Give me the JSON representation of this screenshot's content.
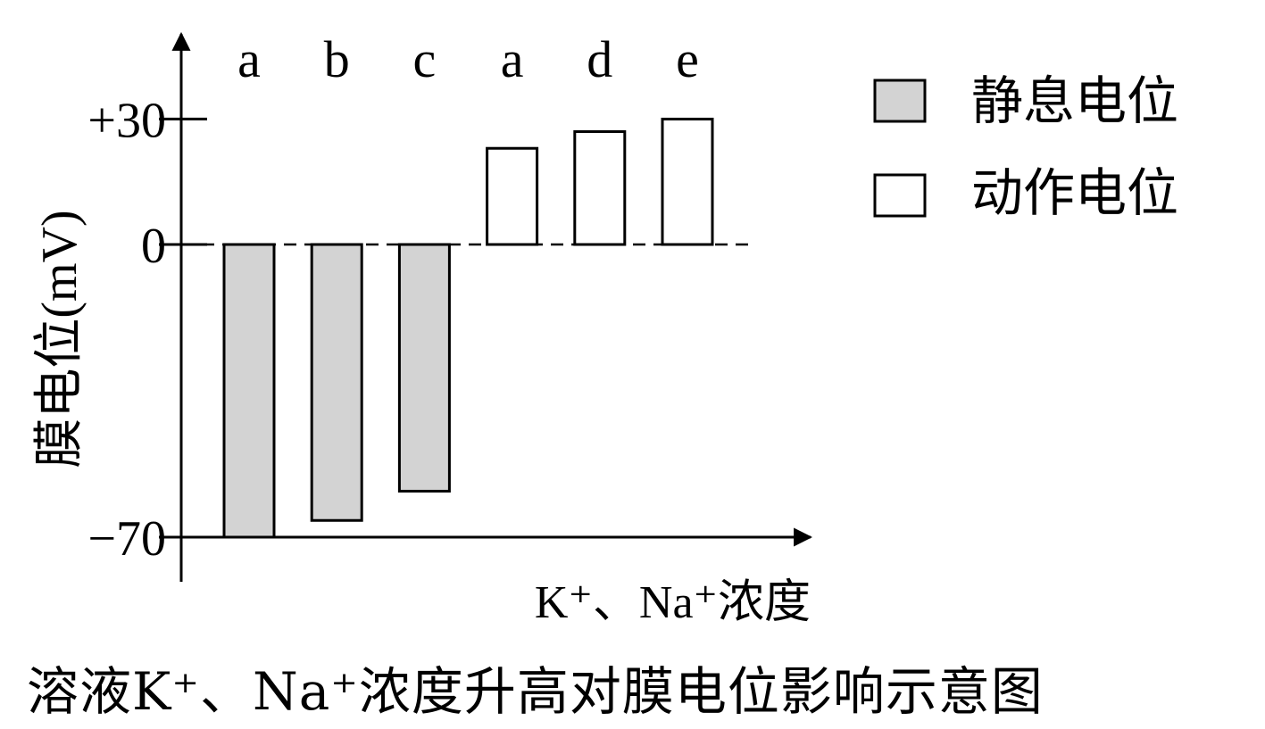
{
  "chart_data": {
    "type": "bar",
    "title": "",
    "ylabel": "膜电位(mV)",
    "xlabel": "K⁺、Na⁺浓度",
    "yticks": [
      {
        "value": 30,
        "label": "+30"
      },
      {
        "value": 0,
        "label": "0"
      },
      {
        "value": -70,
        "label": "−70"
      }
    ],
    "ylim": [
      -70,
      45
    ],
    "zero_line": "dashed",
    "grid": false,
    "legend_position": "top-right",
    "legend": [
      {
        "name": "静息电位",
        "fill": "#d3d3d3"
      },
      {
        "name": "动作电位",
        "fill": "#ffffff"
      }
    ],
    "bars": [
      {
        "category": "a",
        "series": "静息电位",
        "value": -70
      },
      {
        "category": "b",
        "series": "静息电位",
        "value": -66
      },
      {
        "category": "c",
        "series": "静息电位",
        "value": -59
      },
      {
        "category": "a",
        "series": "动作电位",
        "value": 23
      },
      {
        "category": "d",
        "series": "动作电位",
        "value": 27
      },
      {
        "category": "e",
        "series": "动作电位",
        "value": 30
      }
    ]
  },
  "caption": "溶液K⁺、Na⁺浓度升高对膜电位影响示意图"
}
